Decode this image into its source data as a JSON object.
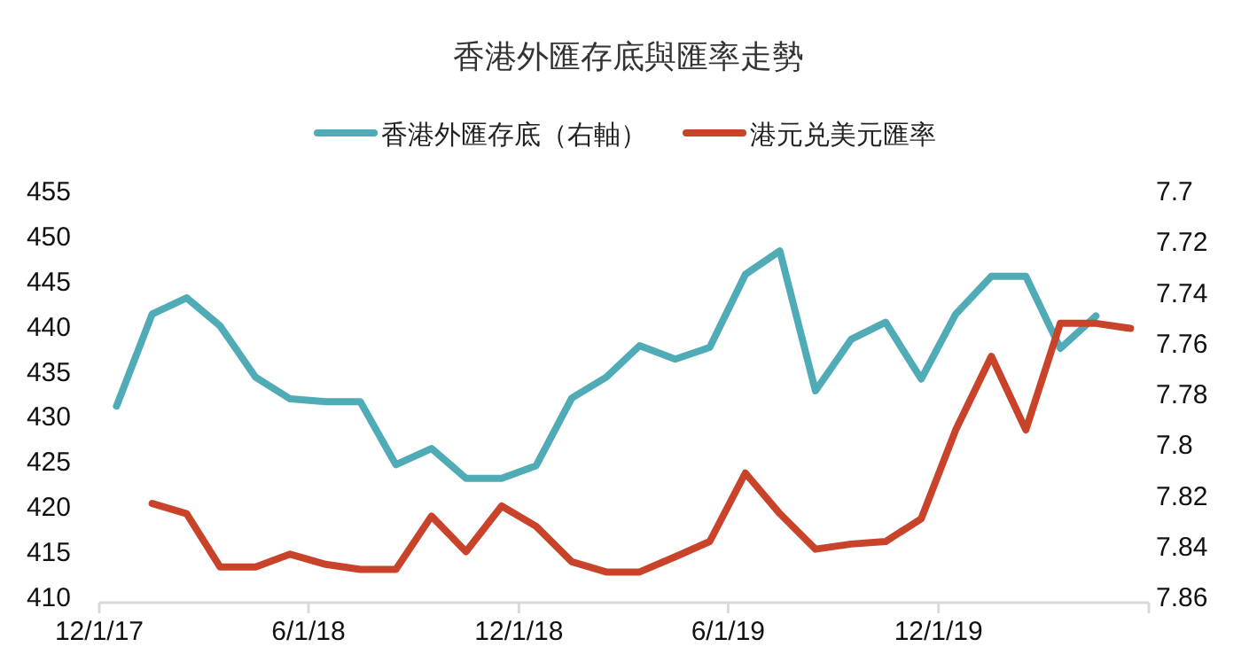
{
  "chart_data": {
    "type": "line",
    "title": "香港外匯存底與匯率走勢",
    "x": [
      "2017-12-16",
      "2018-01-16",
      "2018-02-15",
      "2018-03-16",
      "2018-04-16",
      "2018-05-16",
      "2018-06-16",
      "2018-07-16",
      "2018-08-16",
      "2018-09-16",
      "2018-10-16",
      "2018-11-16",
      "2018-12-16",
      "2019-01-16",
      "2019-02-15",
      "2019-03-16",
      "2019-04-16",
      "2019-05-16",
      "2019-06-16",
      "2019-07-16",
      "2019-08-16",
      "2019-09-16",
      "2019-10-16",
      "2019-11-16",
      "2019-12-16",
      "2020-01-16",
      "2020-02-15",
      "2020-03-16",
      "2020-04-16",
      "2020-05-16"
    ],
    "series": [
      {
        "name": "香港外匯存底（右軸）",
        "color": "#4fabb6",
        "values": [
          431.2,
          441.4,
          443.2,
          440.1,
          434.4,
          432.0,
          431.7,
          431.7,
          424.7,
          426.5,
          423.2,
          423.2,
          424.6,
          432.1,
          434.4,
          437.9,
          436.4,
          437.7,
          445.8,
          448.4,
          432.9,
          438.6,
          440.5,
          434.2,
          441.4,
          445.6,
          445.6,
          437.6,
          441.2,
          null
        ]
      },
      {
        "name": "港元兑美元匯率",
        "color": "#c9432a",
        "axis": "y2",
        "values": [
          null,
          7.823,
          7.827,
          7.848,
          7.848,
          7.843,
          7.847,
          7.849,
          7.849,
          7.828,
          7.842,
          7.824,
          7.832,
          7.846,
          7.85,
          7.85,
          7.844,
          7.838,
          7.811,
          7.827,
          7.841,
          7.839,
          7.838,
          7.829,
          7.794,
          7.765,
          7.794,
          7.752,
          7.752,
          7.754
        ]
      }
    ],
    "xlim": [
      "2017-12-01",
      "2020-06-01"
    ],
    "xticks": [
      {
        "value": "2017-12-01",
        "label": "12/1/17"
      },
      {
        "value": "2018-06-01",
        "label": "6/1/18"
      },
      {
        "value": "2018-12-01",
        "label": "12/1/18"
      },
      {
        "value": "2019-06-01",
        "label": "6/1/19"
      },
      {
        "value": "2019-12-01",
        "label": "12/1/19"
      },
      {
        "value": "2020-06-01",
        "label": null
      }
    ],
    "ylim": [
      410,
      455
    ],
    "yticks": [
      410,
      415,
      420,
      425,
      430,
      435,
      440,
      445,
      450,
      455
    ],
    "y2lim": [
      7.86,
      7.7
    ],
    "y2ticks": [
      7.86,
      7.84,
      7.82,
      7.8,
      7.78,
      7.76,
      7.74,
      7.72,
      7.7
    ],
    "grid": false,
    "legend": "top",
    "marker": "none",
    "line_style": "solid"
  }
}
